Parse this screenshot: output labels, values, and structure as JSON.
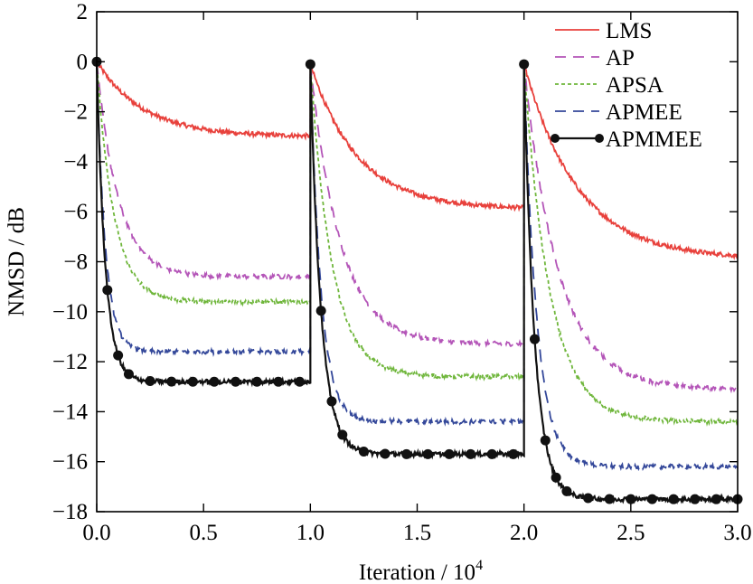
{
  "chart_data": {
    "type": "line",
    "title": "",
    "xlabel": "Iteration / 10",
    "xlabel_superscript": "4",
    "ylabel": "NMSD / dB",
    "xlim": [
      0,
      3.0
    ],
    "ylim": [
      -18,
      2
    ],
    "xticks": [
      0.0,
      0.5,
      1.0,
      1.5,
      2.0,
      2.5,
      3.0
    ],
    "xtick_labels": [
      "0.0",
      "0.5",
      "1.0",
      "1.5",
      "2.0",
      "2.5",
      "3.0"
    ],
    "yticks": [
      2,
      0,
      -2,
      -4,
      -6,
      -8,
      -10,
      -12,
      -14,
      -16,
      -18
    ],
    "ytick_labels": [
      "2",
      "0",
      "−2",
      "−4",
      "−6",
      "−8",
      "−10",
      "−12",
      "−14",
      "−16",
      "−18"
    ],
    "grid": false,
    "legend_position": "top-right",
    "series": [
      {
        "name": "LMS",
        "color": "#e8413c",
        "style": "solid",
        "marker": "none",
        "segments": [
          {
            "start": 0.0,
            "initial": 0,
            "final": -3.0,
            "tau": 0.22
          },
          {
            "start": 1.0,
            "initial": -0.1,
            "final": -5.9,
            "tau": 0.22
          },
          {
            "start": 2.0,
            "initial": -0.1,
            "final": -7.9,
            "tau": 0.25
          }
        ]
      },
      {
        "name": "AP",
        "color": "#b455b8",
        "style": "dashed",
        "marker": "none",
        "segments": [
          {
            "start": 0.0,
            "initial": 0,
            "final": -8.6,
            "tau": 0.1
          },
          {
            "start": 1.0,
            "initial": -0.1,
            "final": -11.3,
            "tau": 0.14
          },
          {
            "start": 2.0,
            "initial": -0.1,
            "final": -13.1,
            "tau": 0.16
          }
        ]
      },
      {
        "name": "APSA",
        "color": "#6fb63b",
        "style": "dotted",
        "marker": "none",
        "segments": [
          {
            "start": 0.0,
            "initial": 0,
            "final": -9.6,
            "tau": 0.08
          },
          {
            "start": 1.0,
            "initial": -0.1,
            "final": -12.6,
            "tau": 0.1
          },
          {
            "start": 2.0,
            "initial": -0.1,
            "final": -14.4,
            "tau": 0.12
          }
        ]
      },
      {
        "name": "APMEE",
        "color": "#34489a",
        "style": "dashed",
        "marker": "none",
        "segments": [
          {
            "start": 0.0,
            "initial": 0,
            "final": -11.6,
            "tau": 0.04
          },
          {
            "start": 1.0,
            "initial": -0.1,
            "final": -14.4,
            "tau": 0.05
          },
          {
            "start": 2.0,
            "initial": -0.1,
            "final": -16.2,
            "tau": 0.06
          }
        ]
      },
      {
        "name": "APMMEE",
        "color": "#111111",
        "style": "solid",
        "marker": "circle",
        "segments": [
          {
            "start": 0.0,
            "initial": 0,
            "final": -12.8,
            "tau": 0.04
          },
          {
            "start": 1.0,
            "initial": -0.1,
            "final": -15.7,
            "tau": 0.05
          },
          {
            "start": 2.0,
            "initial": -0.1,
            "final": -17.5,
            "tau": 0.05
          }
        ]
      }
    ],
    "marker_series": "APMMEE",
    "marker_x": [
      0.0,
      0.05,
      0.1,
      0.15,
      0.25,
      0.35,
      0.45,
      0.55,
      0.65,
      0.75,
      0.85,
      0.95,
      1.0,
      1.05,
      1.1,
      1.15,
      1.25,
      1.35,
      1.45,
      1.55,
      1.65,
      1.75,
      1.85,
      1.95,
      2.0,
      2.05,
      2.1,
      2.15,
      2.2,
      2.3,
      2.4,
      2.5,
      2.6,
      2.7,
      2.8,
      2.9,
      3.0
    ]
  }
}
